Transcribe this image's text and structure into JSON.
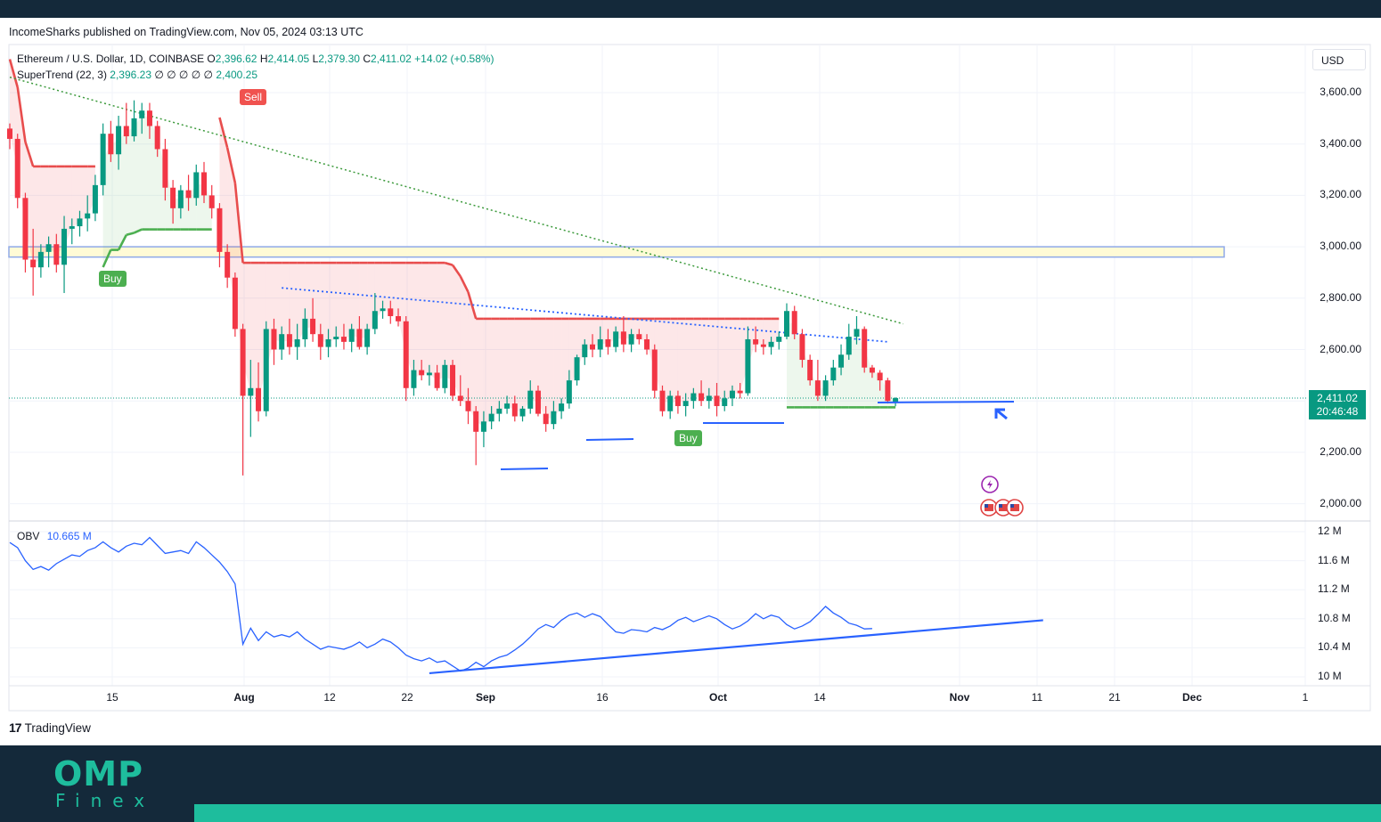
{
  "header": {
    "published": "IncomeSharks published on TradingView.com, Nov 05, 2024 03:13 UTC"
  },
  "legend": {
    "symbol": "Ethereum / U.S. Dollar, 1D, COINBASE",
    "open_label": "O",
    "open": "2,396.62",
    "high_label": "H",
    "high": "2,414.05",
    "low_label": "L",
    "low": "2,379.30",
    "close_label": "C",
    "close": "2,411.02",
    "change": "+14.02 (+0.58%)",
    "supertrend_label": "SuperTrend (22, 3)",
    "supertrend_value": "2,396.23",
    "supertrend_symbols": "∅ ∅ ∅ ∅ ∅",
    "supertrend_value2": "2,400.25",
    "obv_label": "OBV",
    "obv_value": "10.665 M"
  },
  "currency": "USD",
  "price_tag": {
    "price": "2,411.02",
    "countdown": "20:46:48"
  },
  "signals": {
    "buy": "Buy",
    "sell": "Sell"
  },
  "brand": {
    "tradingview": "TradingView",
    "tv_logo": "17",
    "omp": "OMP",
    "finex": "Finex"
  },
  "colors": {
    "up": "#089981",
    "down": "#f23645",
    "supertrend_up": "#4caf50",
    "supertrend_down": "#e84d4d",
    "obv": "#2962ff",
    "zone": "#fff9c4",
    "footer": "#14293a",
    "accent": "#1ebd9d"
  },
  "chart_data": [
    {
      "type": "candlestick",
      "title": "Ethereum / U.S. Dollar, 1D, COINBASE",
      "ylim": [
        1950,
        3750
      ],
      "y_ticks": [
        "3,600.00",
        "3,400.00",
        "3,200.00",
        "3,000.00",
        "2,800.00",
        "2,600.00",
        "2,400.00",
        "2,200.00",
        "2,000.00"
      ],
      "x_ticks": [
        "15",
        "Aug",
        "12",
        "22",
        "Sep",
        "16",
        "Oct",
        "14",
        "Nov",
        "11",
        "21",
        "Dec",
        "1"
      ],
      "last_close": 2411.02,
      "resistance_zone": [
        2960,
        3000
      ],
      "trendline_dotted_green": [
        [
          0,
          3660
        ],
        [
          115,
          2700
        ]
      ],
      "trendline_dotted_blue": [
        [
          35,
          2840
        ],
        [
          113,
          2630
        ]
      ],
      "supertrend_buy_signals": [
        11,
        76
      ],
      "supertrend_sell_signals": [
        27
      ],
      "candles": [
        [
          3460,
          3480,
          3380,
          3420
        ],
        [
          3420,
          3440,
          3150,
          3190
        ],
        [
          3190,
          3210,
          2900,
          2950
        ],
        [
          2950,
          3070,
          2810,
          2920
        ],
        [
          2920,
          3010,
          2880,
          2980
        ],
        [
          2980,
          3040,
          2920,
          3010
        ],
        [
          3010,
          3050,
          2900,
          2930
        ],
        [
          2930,
          3120,
          2820,
          3070
        ],
        [
          3070,
          3110,
          3010,
          3080
        ],
        [
          3080,
          3140,
          3040,
          3110
        ],
        [
          3110,
          3200,
          3060,
          3130
        ],
        [
          3130,
          3280,
          3100,
          3240
        ],
        [
          3240,
          3480,
          3200,
          3440
        ],
        [
          3440,
          3490,
          3330,
          3360
        ],
        [
          3360,
          3510,
          3300,
          3470
        ],
        [
          3470,
          3560,
          3400,
          3430
        ],
        [
          3430,
          3570,
          3410,
          3500
        ],
        [
          3500,
          3560,
          3440,
          3530
        ],
        [
          3530,
          3560,
          3420,
          3470
        ],
        [
          3470,
          3490,
          3350,
          3380
        ],
        [
          3380,
          3420,
          3180,
          3230
        ],
        [
          3230,
          3260,
          3090,
          3150
        ],
        [
          3150,
          3240,
          3110,
          3220
        ],
        [
          3220,
          3280,
          3140,
          3190
        ],
        [
          3190,
          3320,
          3160,
          3290
        ],
        [
          3290,
          3330,
          3170,
          3200
        ],
        [
          3200,
          3240,
          3110,
          3150
        ],
        [
          3150,
          3170,
          2920,
          2980
        ],
        [
          2980,
          3010,
          2840,
          2880
        ],
        [
          2880,
          2900,
          2650,
          2680
        ],
        [
          2680,
          2700,
          2110,
          2420
        ],
        [
          2420,
          2560,
          2260,
          2450
        ],
        [
          2450,
          2550,
          2320,
          2360
        ],
        [
          2360,
          2710,
          2340,
          2680
        ],
        [
          2680,
          2720,
          2540,
          2600
        ],
        [
          2600,
          2690,
          2560,
          2660
        ],
        [
          2660,
          2720,
          2580,
          2610
        ],
        [
          2610,
          2700,
          2560,
          2640
        ],
        [
          2640,
          2760,
          2610,
          2720
        ],
        [
          2720,
          2800,
          2630,
          2660
        ],
        [
          2660,
          2700,
          2560,
          2610
        ],
        [
          2610,
          2680,
          2570,
          2640
        ],
        [
          2640,
          2690,
          2610,
          2650
        ],
        [
          2650,
          2700,
          2600,
          2630
        ],
        [
          2630,
          2700,
          2590,
          2680
        ],
        [
          2680,
          2730,
          2600,
          2610
        ],
        [
          2610,
          2700,
          2580,
          2680
        ],
        [
          2680,
          2820,
          2660,
          2750
        ],
        [
          2750,
          2790,
          2720,
          2760
        ],
        [
          2760,
          2790,
          2700,
          2730
        ],
        [
          2730,
          2760,
          2690,
          2710
        ],
        [
          2710,
          2730,
          2400,
          2450
        ],
        [
          2450,
          2560,
          2420,
          2520
        ],
        [
          2520,
          2560,
          2480,
          2500
        ],
        [
          2500,
          2540,
          2460,
          2510
        ],
        [
          2510,
          2540,
          2440,
          2450
        ],
        [
          2450,
          2560,
          2430,
          2540
        ],
        [
          2540,
          2560,
          2400,
          2420
        ],
        [
          2420,
          2500,
          2380,
          2400
        ],
        [
          2400,
          2450,
          2310,
          2360
        ],
        [
          2360,
          2380,
          2150,
          2280
        ],
        [
          2280,
          2360,
          2220,
          2320
        ],
        [
          2320,
          2380,
          2290,
          2350
        ],
        [
          2350,
          2400,
          2320,
          2370
        ],
        [
          2370,
          2420,
          2350,
          2390
        ],
        [
          2390,
          2420,
          2320,
          2340
        ],
        [
          2340,
          2380,
          2320,
          2370
        ],
        [
          2370,
          2480,
          2350,
          2440
        ],
        [
          2440,
          2460,
          2340,
          2350
        ],
        [
          2350,
          2380,
          2280,
          2310
        ],
        [
          2310,
          2400,
          2290,
          2360
        ],
        [
          2360,
          2410,
          2330,
          2390
        ],
        [
          2390,
          2520,
          2370,
          2480
        ],
        [
          2480,
          2580,
          2460,
          2570
        ],
        [
          2570,
          2640,
          2540,
          2620
        ],
        [
          2620,
          2660,
          2570,
          2600
        ],
        [
          2600,
          2690,
          2570,
          2640
        ],
        [
          2640,
          2680,
          2580,
          2610
        ],
        [
          2610,
          2690,
          2590,
          2670
        ],
        [
          2670,
          2730,
          2590,
          2620
        ],
        [
          2620,
          2680,
          2590,
          2660
        ],
        [
          2660,
          2680,
          2620,
          2640
        ],
        [
          2640,
          2660,
          2580,
          2600
        ],
        [
          2600,
          2620,
          2410,
          2440
        ],
        [
          2440,
          2460,
          2340,
          2360
        ],
        [
          2360,
          2440,
          2330,
          2420
        ],
        [
          2420,
          2440,
          2350,
          2380
        ],
        [
          2380,
          2430,
          2340,
          2400
        ],
        [
          2400,
          2450,
          2370,
          2430
        ],
        [
          2430,
          2480,
          2380,
          2400
        ],
        [
          2400,
          2450,
          2370,
          2420
        ],
        [
          2420,
          2470,
          2340,
          2380
        ],
        [
          2380,
          2440,
          2360,
          2410
        ],
        [
          2410,
          2460,
          2380,
          2440
        ],
        [
          2440,
          2470,
          2410,
          2430
        ],
        [
          2430,
          2690,
          2420,
          2640
        ],
        [
          2640,
          2690,
          2590,
          2620
        ],
        [
          2620,
          2640,
          2580,
          2610
        ],
        [
          2610,
          2650,
          2580,
          2630
        ],
        [
          2630,
          2670,
          2600,
          2650
        ],
        [
          2650,
          2780,
          2640,
          2750
        ],
        [
          2750,
          2770,
          2640,
          2660
        ],
        [
          2660,
          2680,
          2530,
          2560
        ],
        [
          2560,
          2580,
          2460,
          2480
        ],
        [
          2480,
          2560,
          2400,
          2420
        ],
        [
          2420,
          2500,
          2400,
          2480
        ],
        [
          2480,
          2560,
          2460,
          2530
        ],
        [
          2530,
          2620,
          2500,
          2580
        ],
        [
          2580,
          2700,
          2560,
          2650
        ],
        [
          2650,
          2730,
          2620,
          2680
        ],
        [
          2680,
          2690,
          2510,
          2530
        ],
        [
          2530,
          2540,
          2490,
          2510
        ],
        [
          2510,
          2520,
          2440,
          2480
        ],
        [
          2480,
          2490,
          2390,
          2400
        ],
        [
          2396.62,
          2414.05,
          2379.3,
          2411.02
        ]
      ]
    },
    {
      "type": "line",
      "name": "OBV",
      "ylim": [
        9.95,
        12.05
      ],
      "unit": "M",
      "y_ticks": [
        "12 M",
        "11.6 M",
        "11.2 M",
        "10.8 M",
        "10.4 M",
        "10 M"
      ],
      "trendline": [
        [
          54,
          10.05
        ],
        [
          133,
          10.78
        ]
      ],
      "values": [
        11.85,
        11.78,
        11.6,
        11.48,
        11.52,
        11.47,
        11.56,
        11.62,
        11.68,
        11.66,
        11.74,
        11.78,
        11.86,
        11.78,
        11.72,
        11.8,
        11.84,
        11.82,
        11.92,
        11.81,
        11.7,
        11.72,
        11.74,
        11.7,
        11.86,
        11.78,
        11.68,
        11.58,
        11.45,
        11.28,
        10.45,
        10.67,
        10.5,
        10.62,
        10.55,
        10.58,
        10.55,
        10.62,
        10.52,
        10.45,
        10.38,
        10.42,
        10.4,
        10.38,
        10.42,
        10.48,
        10.4,
        10.45,
        10.52,
        10.48,
        10.4,
        10.3,
        10.25,
        10.22,
        10.26,
        10.2,
        10.22,
        10.15,
        10.08,
        10.12,
        10.2,
        10.14,
        10.22,
        10.27,
        10.3,
        10.37,
        10.45,
        10.55,
        10.66,
        10.72,
        10.68,
        10.78,
        10.85,
        10.88,
        10.82,
        10.87,
        10.83,
        10.72,
        10.62,
        10.6,
        10.65,
        10.64,
        10.62,
        10.68,
        10.65,
        10.7,
        10.78,
        10.82,
        10.76,
        10.8,
        10.84,
        10.8,
        10.72,
        10.66,
        10.7,
        10.77,
        10.87,
        10.8,
        10.85,
        10.82,
        10.72,
        10.66,
        10.7,
        10.76,
        10.86,
        10.97,
        10.88,
        10.82,
        10.74,
        10.71,
        10.66,
        10.665
      ]
    }
  ]
}
